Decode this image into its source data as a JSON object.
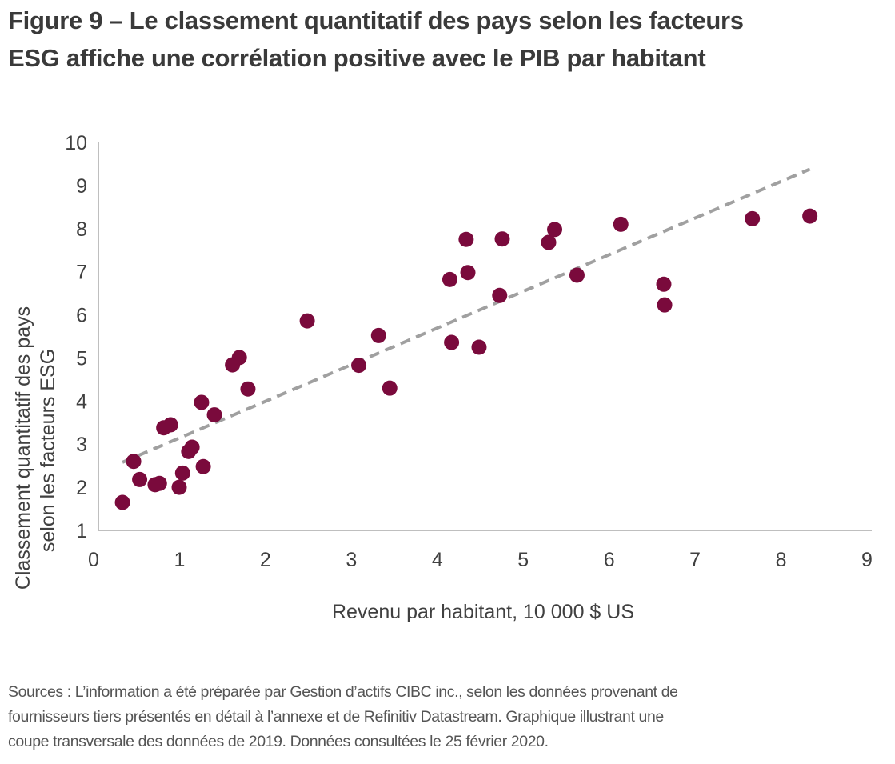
{
  "figure": {
    "title_line1": "Figure 9 – Le classement quantitatif des pays selon les facteurs",
    "title_line2": "ESG affiche une corrélation positive avec le PIB par habitant",
    "sources_line1": "Sources : L’information a été préparée par Gestion d’actifs CIBC inc., selon les données provenant de",
    "sources_line2": "fournisseurs tiers présentés en détail à l’annexe et de Refinitiv Datastream. Graphique illustrant une",
    "sources_line3": "coupe transversale des données de 2019. Données consultées le 25 février 2020."
  },
  "chart_data": {
    "type": "scatter",
    "title": "Figure 9 – Le classement quantitatif des pays selon les facteurs ESG affiche une corrélation positive avec le PIB par habitant",
    "xlabel": "Revenu par habitant, 10 000 $ US",
    "ylabel_line1": "Classement quantitatif des pays",
    "ylabel_line2": "selon les facteurs ESG",
    "xlim": [
      0,
      9
    ],
    "ylim": [
      1,
      10
    ],
    "xticks": [
      "0",
      "1",
      "2",
      "3",
      "4",
      "5",
      "6",
      "7",
      "8",
      "9"
    ],
    "yticks": [
      "1",
      "2",
      "3",
      "4",
      "5",
      "6",
      "7",
      "8",
      "9",
      "10"
    ],
    "grid": false,
    "marker_color": "#7a0a3c",
    "trendline_color": "#a0a0a0",
    "trendline": {
      "style": "dashed",
      "x": [
        0.28,
        8.28
      ],
      "y": [
        2.58,
        9.38
      ]
    },
    "points": [
      {
        "x": 0.28,
        "y": 1.65
      },
      {
        "x": 0.41,
        "y": 2.6
      },
      {
        "x": 0.48,
        "y": 2.18
      },
      {
        "x": 0.66,
        "y": 2.06
      },
      {
        "x": 0.71,
        "y": 2.09
      },
      {
        "x": 0.76,
        "y": 3.38
      },
      {
        "x": 0.84,
        "y": 3.45
      },
      {
        "x": 0.94,
        "y": 2.0
      },
      {
        "x": 0.98,
        "y": 2.33
      },
      {
        "x": 1.05,
        "y": 2.83
      },
      {
        "x": 1.09,
        "y": 2.93
      },
      {
        "x": 1.2,
        "y": 3.97
      },
      {
        "x": 1.22,
        "y": 2.48
      },
      {
        "x": 1.35,
        "y": 3.68
      },
      {
        "x": 1.56,
        "y": 4.84
      },
      {
        "x": 1.64,
        "y": 5.01
      },
      {
        "x": 1.74,
        "y": 4.28
      },
      {
        "x": 2.43,
        "y": 5.86
      },
      {
        "x": 3.03,
        "y": 4.83
      },
      {
        "x": 3.26,
        "y": 5.52
      },
      {
        "x": 3.39,
        "y": 4.3
      },
      {
        "x": 4.09,
        "y": 6.82
      },
      {
        "x": 4.11,
        "y": 5.36
      },
      {
        "x": 4.28,
        "y": 7.75
      },
      {
        "x": 4.3,
        "y": 6.98
      },
      {
        "x": 4.43,
        "y": 5.25
      },
      {
        "x": 4.67,
        "y": 6.45
      },
      {
        "x": 4.7,
        "y": 7.76
      },
      {
        "x": 5.24,
        "y": 7.68
      },
      {
        "x": 5.31,
        "y": 7.98
      },
      {
        "x": 5.57,
        "y": 6.92
      },
      {
        "x": 6.08,
        "y": 8.1
      },
      {
        "x": 6.58,
        "y": 6.71
      },
      {
        "x": 6.59,
        "y": 6.23
      },
      {
        "x": 7.61,
        "y": 8.23
      },
      {
        "x": 8.28,
        "y": 8.29
      }
    ]
  }
}
